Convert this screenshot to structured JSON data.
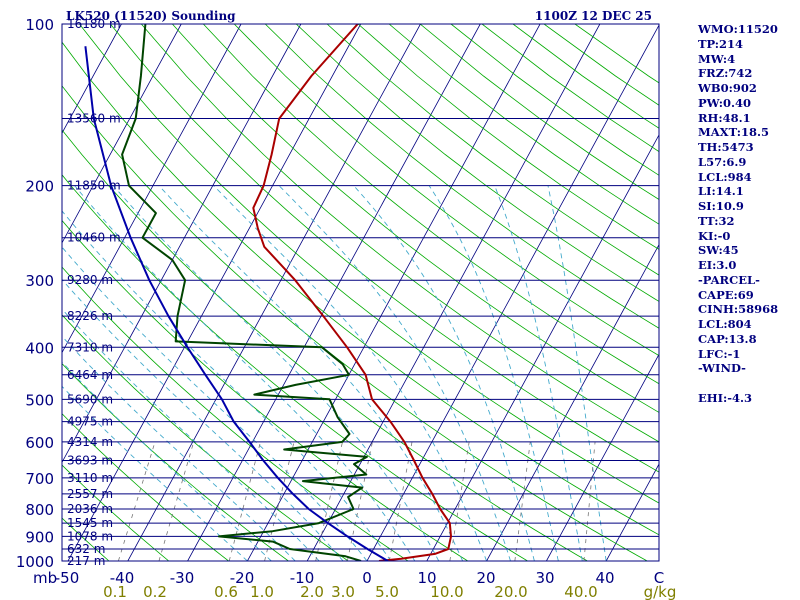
{
  "title_left": "LK520 (11520) Sounding",
  "title_right": "1100Z 12 DEC 25",
  "colors": {
    "frame": "#00007f",
    "isotherm": "#00007f",
    "dry_adiabat": "#00aa00",
    "moist_adiabat": "#44aacc",
    "mixing_ratio": "#777777",
    "temperature": "#aa0000",
    "dewpoint": "#004400",
    "parcel": "#0000aa"
  },
  "indices": [
    "WMO:11520",
    "TP:214",
    "MW:4",
    "FRZ:742",
    "WB0:902",
    "PW:0.40",
    "RH:48.1",
    "MAXT:18.5",
    "TH:5473",
    "L57:6.9",
    "LCL:984",
    "LI:14.1",
    "SI:10.9",
    "TT:32",
    "KI:-0",
    "SW:45",
    "EI:3.0",
    "-PARCEL-",
    "CAPE:69",
    "CINH:58968",
    "LCL:804",
    "CAP:13.8",
    "LFC:-1",
    "-WIND-",
    "",
    "EHI:-4.3"
  ],
  "chart_data": {
    "type": "line",
    "diagram": "skew-T log-P",
    "title": "LK520 (11520) Sounding",
    "subtitle": "1100Z 12 DEC 25",
    "pressure_unit": "mb",
    "pressure_range": [
      1000,
      100
    ],
    "pressure_ticks": [
      100,
      200,
      300,
      400,
      500,
      600,
      700,
      800,
      900,
      1000
    ],
    "temperature_range": [
      -50,
      50
    ],
    "temperature_ticks": [
      "-50",
      "-40",
      "-30",
      "-20",
      "-10",
      "0",
      "10",
      "20",
      "30",
      "40",
      "C"
    ],
    "mixing_ratio_unit": "g/kg",
    "mixing_ratio_ticks": [
      "0.1",
      "0.2",
      "0.6",
      "1.0",
      "2.0",
      "3.0",
      "5.0",
      "10.0",
      "20.0",
      "40.0"
    ],
    "height_labels": [
      {
        "p": 100,
        "label": "16180 m"
      },
      {
        "p": 150,
        "label": "13560 m"
      },
      {
        "p": 200,
        "label": "11850 m"
      },
      {
        "p": 250,
        "label": "10460 m"
      },
      {
        "p": 300,
        "label": "9280 m"
      },
      {
        "p": 350,
        "label": "8226 m"
      },
      {
        "p": 400,
        "label": "7310 m"
      },
      {
        "p": 450,
        "label": "6464 m"
      },
      {
        "p": 500,
        "label": "5690 m"
      },
      {
        "p": 550,
        "label": "4975 m"
      },
      {
        "p": 600,
        "label": "4314 m"
      },
      {
        "p": 650,
        "label": "3693 m"
      },
      {
        "p": 700,
        "label": "3110 m"
      },
      {
        "p": 750,
        "label": "2557 m"
      },
      {
        "p": 800,
        "label": "2036 m"
      },
      {
        "p": 850,
        "label": "1545 m"
      },
      {
        "p": 900,
        "label": "1078 m"
      },
      {
        "p": 950,
        "label": "632 m"
      },
      {
        "p": 1000,
        "label": "217 m"
      }
    ],
    "series": [
      {
        "values": [
          {
            "p": 1000,
            "t": 2.0
          },
          {
            "p": 990,
            "t": 5.5
          },
          {
            "p": 970,
            "t": 10.7
          },
          {
            "p": 950,
            "t": 12.5
          },
          {
            "p": 900,
            "t": 11.8
          },
          {
            "p": 850,
            "t": 10.4
          },
          {
            "p": 800,
            "t": 7.5
          },
          {
            "p": 750,
            "t": 4.8
          },
          {
            "p": 700,
            "t": 1.7
          },
          {
            "p": 650,
            "t": -1.3
          },
          {
            "p": 600,
            "t": -4.6
          },
          {
            "p": 550,
            "t": -8.8
          },
          {
            "p": 500,
            "t": -13.9
          },
          {
            "p": 450,
            "t": -17.2
          },
          {
            "p": 400,
            "t": -22.8
          },
          {
            "p": 350,
            "t": -29.6
          },
          {
            "p": 300,
            "t": -37.6
          },
          {
            "p": 260,
            "t": -45.8
          },
          {
            "p": 240,
            "t": -48.6
          },
          {
            "p": 220,
            "t": -51.2
          },
          {
            "p": 200,
            "t": -51.5
          },
          {
            "p": 175,
            "t": -53.0
          },
          {
            "p": 150,
            "t": -55.0
          },
          {
            "p": 125,
            "t": -53.5
          },
          {
            "p": 100,
            "t": -50.5
          }
        ]
      },
      {
        "values": [
          {
            "p": 1000,
            "t": -1.0
          },
          {
            "p": 980,
            "t": -4.0
          },
          {
            "p": 950,
            "t": -14.0
          },
          {
            "p": 920,
            "t": -17.5
          },
          {
            "p": 900,
            "t": -27.0
          },
          {
            "p": 880,
            "t": -18.5
          },
          {
            "p": 850,
            "t": -11.5
          },
          {
            "p": 800,
            "t": -7.0
          },
          {
            "p": 760,
            "t": -9.0
          },
          {
            "p": 730,
            "t": -7.5
          },
          {
            "p": 710,
            "t": -18.0
          },
          {
            "p": 690,
            "t": -8.0
          },
          {
            "p": 660,
            "t": -11.0
          },
          {
            "p": 640,
            "t": -9.5
          },
          {
            "p": 620,
            "t": -24.0
          },
          {
            "p": 600,
            "t": -15.0
          },
          {
            "p": 580,
            "t": -14.5
          },
          {
            "p": 540,
            "t": -18.0
          },
          {
            "p": 500,
            "t": -21.0
          },
          {
            "p": 490,
            "t": -34.0
          },
          {
            "p": 470,
            "t": -28.0
          },
          {
            "p": 450,
            "t": -20.0
          },
          {
            "p": 430,
            "t": -22.0
          },
          {
            "p": 400,
            "t": -27.0
          },
          {
            "p": 390,
            "t": -52.0
          },
          {
            "p": 350,
            "t": -54.0
          },
          {
            "p": 300,
            "t": -56.0
          },
          {
            "p": 275,
            "t": -60.0
          },
          {
            "p": 250,
            "t": -67.0
          },
          {
            "p": 225,
            "t": -67.0
          },
          {
            "p": 200,
            "t": -74.0
          },
          {
            "p": 175,
            "t": -78.0
          },
          {
            "p": 150,
            "t": -79.0
          },
          {
            "p": 125,
            "t": -82.0
          },
          {
            "p": 100,
            "t": -86.0
          }
        ]
      },
      {
        "values": [
          {
            "p": 1000,
            "t": 3.5
          },
          {
            "p": 950,
            "t": -1.0
          },
          {
            "p": 900,
            "t": -5.5
          },
          {
            "p": 850,
            "t": -10.0
          },
          {
            "p": 800,
            "t": -14.5
          },
          {
            "p": 750,
            "t": -18.5
          },
          {
            "p": 700,
            "t": -22.5
          },
          {
            "p": 650,
            "t": -26.5
          },
          {
            "p": 600,
            "t": -30.5
          },
          {
            "p": 550,
            "t": -35.0
          },
          {
            "p": 500,
            "t": -39.0
          },
          {
            "p": 450,
            "t": -44.0
          },
          {
            "p": 400,
            "t": -49.5
          },
          {
            "p": 350,
            "t": -55.5
          },
          {
            "p": 300,
            "t": -62.0
          },
          {
            "p": 250,
            "t": -69.0
          },
          {
            "p": 200,
            "t": -77.0
          },
          {
            "p": 150,
            "t": -86.0
          },
          {
            "p": 110,
            "t": -94.0
          }
        ]
      }
    ]
  }
}
